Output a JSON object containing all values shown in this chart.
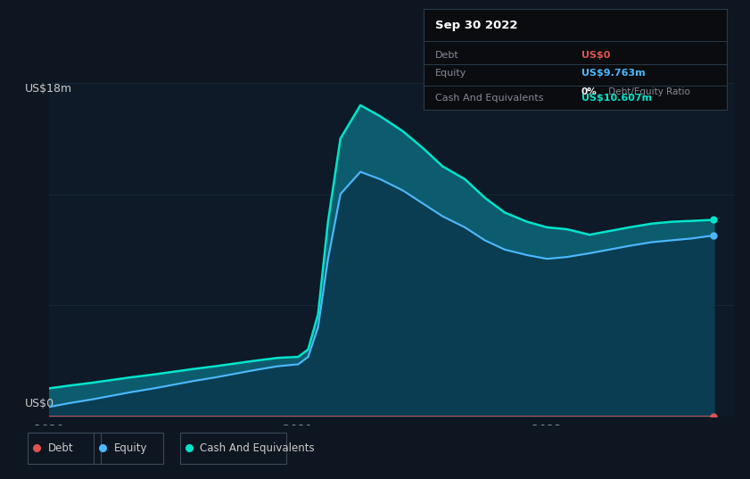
{
  "background_color": "#0e1621",
  "chart_bg_color": "#0e1a27",
  "title_box": {
    "date": "Sep 30 2022",
    "rows": [
      {
        "label": "Debt",
        "value": "US$0",
        "value_color": "#e05252",
        "extra": ""
      },
      {
        "label": "Equity",
        "value": "US$9.763m",
        "value_color": "#4db8ff",
        "extra": "0% Debt/Equity Ratio"
      },
      {
        "label": "Cash And Equivalents",
        "value": "US$10.607m",
        "value_color": "#00e5cc",
        "extra": ""
      }
    ]
  },
  "ylabel_text": "US$18m",
  "y0_text": "US$0",
  "x_ticks": [
    "2020",
    "2021",
    "2022"
  ],
  "x_tick_pos": [
    0.0,
    1.0,
    2.0
  ],
  "legend": [
    {
      "label": "Debt",
      "color": "#e05252"
    },
    {
      "label": "Equity",
      "color": "#4db8ff"
    },
    {
      "label": "Cash And Equivalents",
      "color": "#00e5cc"
    }
  ],
  "grid_color": "#1a2e3f",
  "line_color_debt": "#e05252",
  "line_color_equity": "#4db8ff",
  "line_color_cash": "#00e5cc",
  "x_data": [
    0.0,
    0.08,
    0.17,
    0.25,
    0.33,
    0.42,
    0.5,
    0.58,
    0.67,
    0.75,
    0.83,
    0.92,
    1.0,
    1.04,
    1.08,
    1.12,
    1.17,
    1.25,
    1.33,
    1.42,
    1.5,
    1.58,
    1.67,
    1.75,
    1.83,
    1.92,
    2.0,
    2.08,
    2.17,
    2.25,
    2.33,
    2.42,
    2.5,
    2.58,
    2.67
  ],
  "equity_data": [
    0.5,
    0.7,
    0.9,
    1.1,
    1.3,
    1.5,
    1.7,
    1.9,
    2.1,
    2.3,
    2.5,
    2.7,
    2.8,
    3.2,
    4.8,
    8.5,
    12.0,
    13.2,
    12.8,
    12.2,
    11.5,
    10.8,
    10.2,
    9.5,
    9.0,
    8.7,
    8.5,
    8.6,
    8.8,
    9.0,
    9.2,
    9.4,
    9.5,
    9.6,
    9.763
  ],
  "cash_data": [
    1.5,
    1.65,
    1.8,
    1.95,
    2.1,
    2.25,
    2.4,
    2.55,
    2.7,
    2.85,
    3.0,
    3.15,
    3.2,
    3.6,
    5.5,
    10.5,
    15.0,
    16.8,
    16.2,
    15.4,
    14.5,
    13.5,
    12.8,
    11.8,
    11.0,
    10.5,
    10.2,
    10.1,
    9.8,
    10.0,
    10.2,
    10.4,
    10.5,
    10.55,
    10.607
  ],
  "debt_data": [
    0.0,
    0.0,
    0.0,
    0.0,
    0.0,
    0.0,
    0.0,
    0.0,
    0.0,
    0.0,
    0.0,
    0.0,
    0.0,
    0.0,
    0.0,
    0.0,
    0.0,
    0.0,
    0.0,
    0.0,
    0.0,
    0.0,
    0.0,
    0.0,
    0.0,
    0.0,
    0.0,
    0.0,
    0.0,
    0.0,
    0.0,
    0.0,
    0.0,
    0.0,
    0.0
  ],
  "ylim": [
    0,
    18
  ],
  "xlim": [
    0.0,
    2.75
  ]
}
